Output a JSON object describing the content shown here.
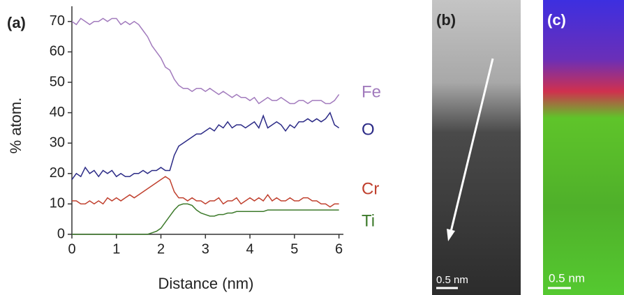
{
  "chart_data": {
    "type": "line",
    "panel_labels": [
      "(a)",
      "(b)",
      "(c)"
    ],
    "xlabel": "Distance (nm)",
    "ylabel": "% atom.",
    "scale_bar_labels": [
      "0.5 nm",
      "0.5 nm"
    ],
    "x": [
      0,
      0.1,
      0.2,
      0.3,
      0.4,
      0.5,
      0.6,
      0.7,
      0.8,
      0.9,
      1,
      1.1,
      1.2,
      1.3,
      1.4,
      1.5,
      1.6,
      1.7,
      1.8,
      1.9,
      2,
      2.1,
      2.2,
      2.3,
      2.4,
      2.5,
      2.6,
      2.7,
      2.8,
      2.9,
      3,
      3.1,
      3.2,
      3.3,
      3.4,
      3.5,
      3.6,
      3.7,
      3.8,
      3.9,
      4,
      4.1,
      4.2,
      4.3,
      4.4,
      4.5,
      4.6,
      4.7,
      4.8,
      4.9,
      5,
      5.1,
      5.2,
      5.3,
      5.4,
      5.5,
      5.6,
      5.7,
      5.8,
      5.9,
      6
    ],
    "series": [
      {
        "name": "Fe",
        "color": "#a27bbd",
        "values": [
          70,
          69,
          71,
          70,
          69,
          70,
          70,
          71,
          70,
          71,
          71,
          69,
          70,
          69,
          70,
          69,
          67,
          65,
          62,
          60,
          58,
          55,
          54,
          51,
          49,
          48,
          48,
          47,
          48,
          48,
          47,
          48,
          47,
          46,
          47,
          46,
          45,
          46,
          45,
          45,
          44,
          45,
          43,
          44,
          45,
          44,
          44,
          45,
          44,
          43,
          43,
          44,
          44,
          43,
          44,
          44,
          44,
          43,
          43,
          44,
          46
        ]
      },
      {
        "name": "O",
        "color": "#2b2a86",
        "values": [
          18,
          20,
          19,
          22,
          20,
          21,
          19,
          21,
          20,
          21,
          19,
          20,
          19,
          19,
          20,
          20,
          21,
          20,
          21,
          21,
          22,
          21,
          21,
          26,
          29,
          30,
          31,
          32,
          33,
          33,
          34,
          35,
          34,
          36,
          35,
          37,
          35,
          36,
          36,
          35,
          36,
          37,
          35,
          39,
          35,
          36,
          37,
          36,
          34,
          36,
          35,
          37,
          37,
          38,
          37,
          38,
          37,
          38,
          40,
          36,
          35
        ]
      },
      {
        "name": "Cr",
        "color": "#c0402e",
        "values": [
          11,
          11,
          10,
          10,
          11,
          10,
          11,
          10,
          12,
          11,
          12,
          11,
          12,
          13,
          12,
          13,
          14,
          15,
          16,
          17,
          18,
          19,
          18,
          14,
          12,
          12,
          11,
          12,
          11,
          11,
          10,
          11,
          11,
          12,
          10,
          11,
          11,
          12,
          10,
          11,
          12,
          11,
          12,
          11,
          13,
          11,
          12,
          11,
          11,
          12,
          11,
          11,
          12,
          12,
          11,
          11,
          10,
          10,
          9,
          10,
          10
        ]
      },
      {
        "name": "Ti",
        "color": "#3d7a2b",
        "values": [
          0,
          0,
          0,
          0,
          0,
          0,
          0,
          0,
          0,
          0,
          0,
          0,
          0,
          0,
          0,
          0,
          0,
          0,
          0.5,
          1,
          2,
          4,
          6,
          8,
          9.5,
          10,
          10,
          9.5,
          8,
          7,
          6.5,
          6,
          6,
          6.5,
          6.5,
          7,
          7,
          7.5,
          7.5,
          7.5,
          7.5,
          7.5,
          7.5,
          7.5,
          8,
          8,
          8,
          8,
          8,
          8,
          8,
          8,
          8,
          8,
          8,
          8,
          8,
          8,
          8,
          8,
          8
        ]
      }
    ],
    "xlim": [
      0,
      6.1
    ],
    "xticks": [
      0,
      1,
      2,
      3,
      4,
      5,
      6
    ],
    "ylim": [
      0,
      75
    ],
    "yticks": [
      0,
      10,
      20,
      30,
      40,
      50,
      60,
      70
    ]
  }
}
